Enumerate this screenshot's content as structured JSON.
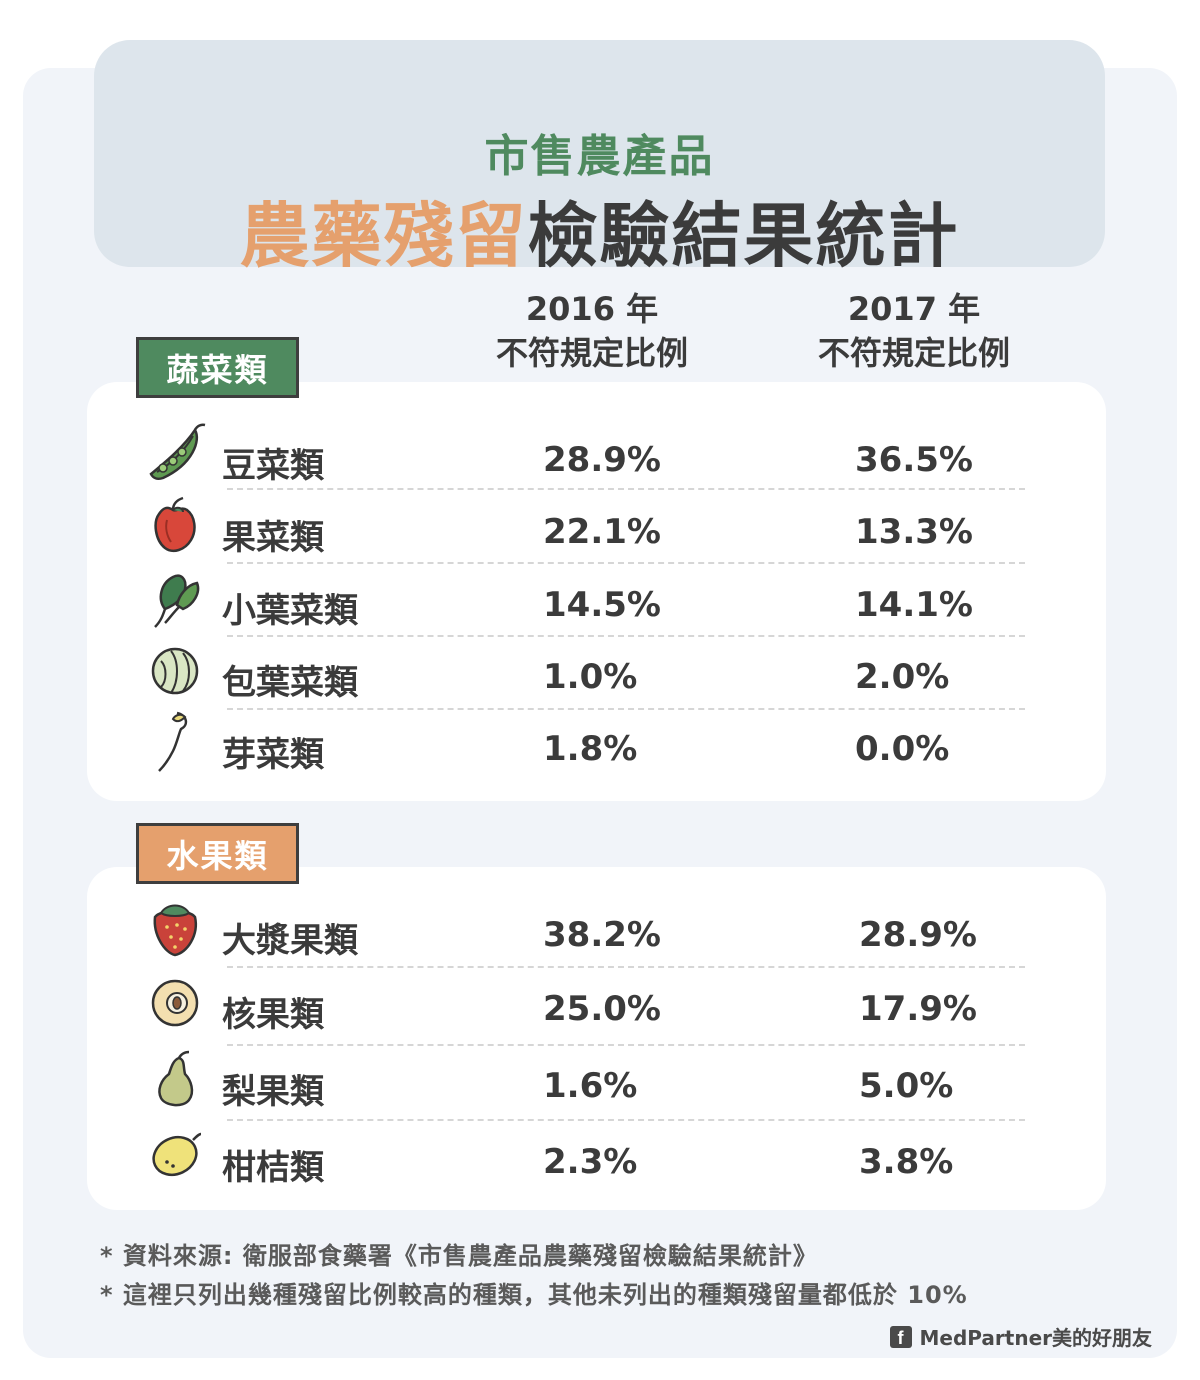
{
  "title": {
    "subtitle": "市售農產品",
    "main_highlight": "農藥殘留",
    "main_rest": "檢驗結果統計"
  },
  "columns": [
    {
      "year": "2016 年",
      "label": "不符規定比例"
    },
    {
      "year": "2017 年",
      "label": "不符規定比例"
    }
  ],
  "vegetables": {
    "tag": "蔬菜類",
    "rows": [
      {
        "name": "豆菜類",
        "v2016": "28.9%",
        "v2017": "36.5%",
        "icon": "pea-pod-icon"
      },
      {
        "name": "果菜類",
        "v2016": "22.1%",
        "v2017": "13.3%",
        "icon": "bell-pepper-icon"
      },
      {
        "name": "小葉菜類",
        "v2016": "14.5%",
        "v2017": "14.1%",
        "icon": "leafy-greens-icon"
      },
      {
        "name": "包葉菜類",
        "v2016": "1.0%",
        "v2017": "2.0%",
        "icon": "cabbage-icon"
      },
      {
        "name": "芽菜類",
        "v2016": "1.8%",
        "v2017": "0.0%",
        "icon": "bean-sprout-icon"
      }
    ]
  },
  "fruits": {
    "tag": "水果類",
    "rows": [
      {
        "name": "大漿果類",
        "v2016": "38.2%",
        "v2017": "28.9%",
        "icon": "strawberry-icon"
      },
      {
        "name": "核果類",
        "v2016": "25.0%",
        "v2017": "17.9%",
        "icon": "peach-icon"
      },
      {
        "name": "梨果類",
        "v2016": "1.6%",
        "v2017": "5.0%",
        "icon": "pear-icon"
      },
      {
        "name": "柑桔類",
        "v2016": "2.3%",
        "v2017": "3.8%",
        "icon": "lemon-icon"
      }
    ]
  },
  "notes": [
    "* 資料來源: 衛服部食藥署《市售農產品農藥殘留檢驗結果統計》",
    "* 這裡只列出幾種殘留比例較高的種類，其他未列出的種類殘留量都低於 10%"
  ],
  "credit": "MedPartner美的好朋友",
  "colors": {
    "green": "#4f8a5f",
    "orange": "#e5a06d",
    "text": "#3b3b3b",
    "background": "#f1f4f9"
  }
}
